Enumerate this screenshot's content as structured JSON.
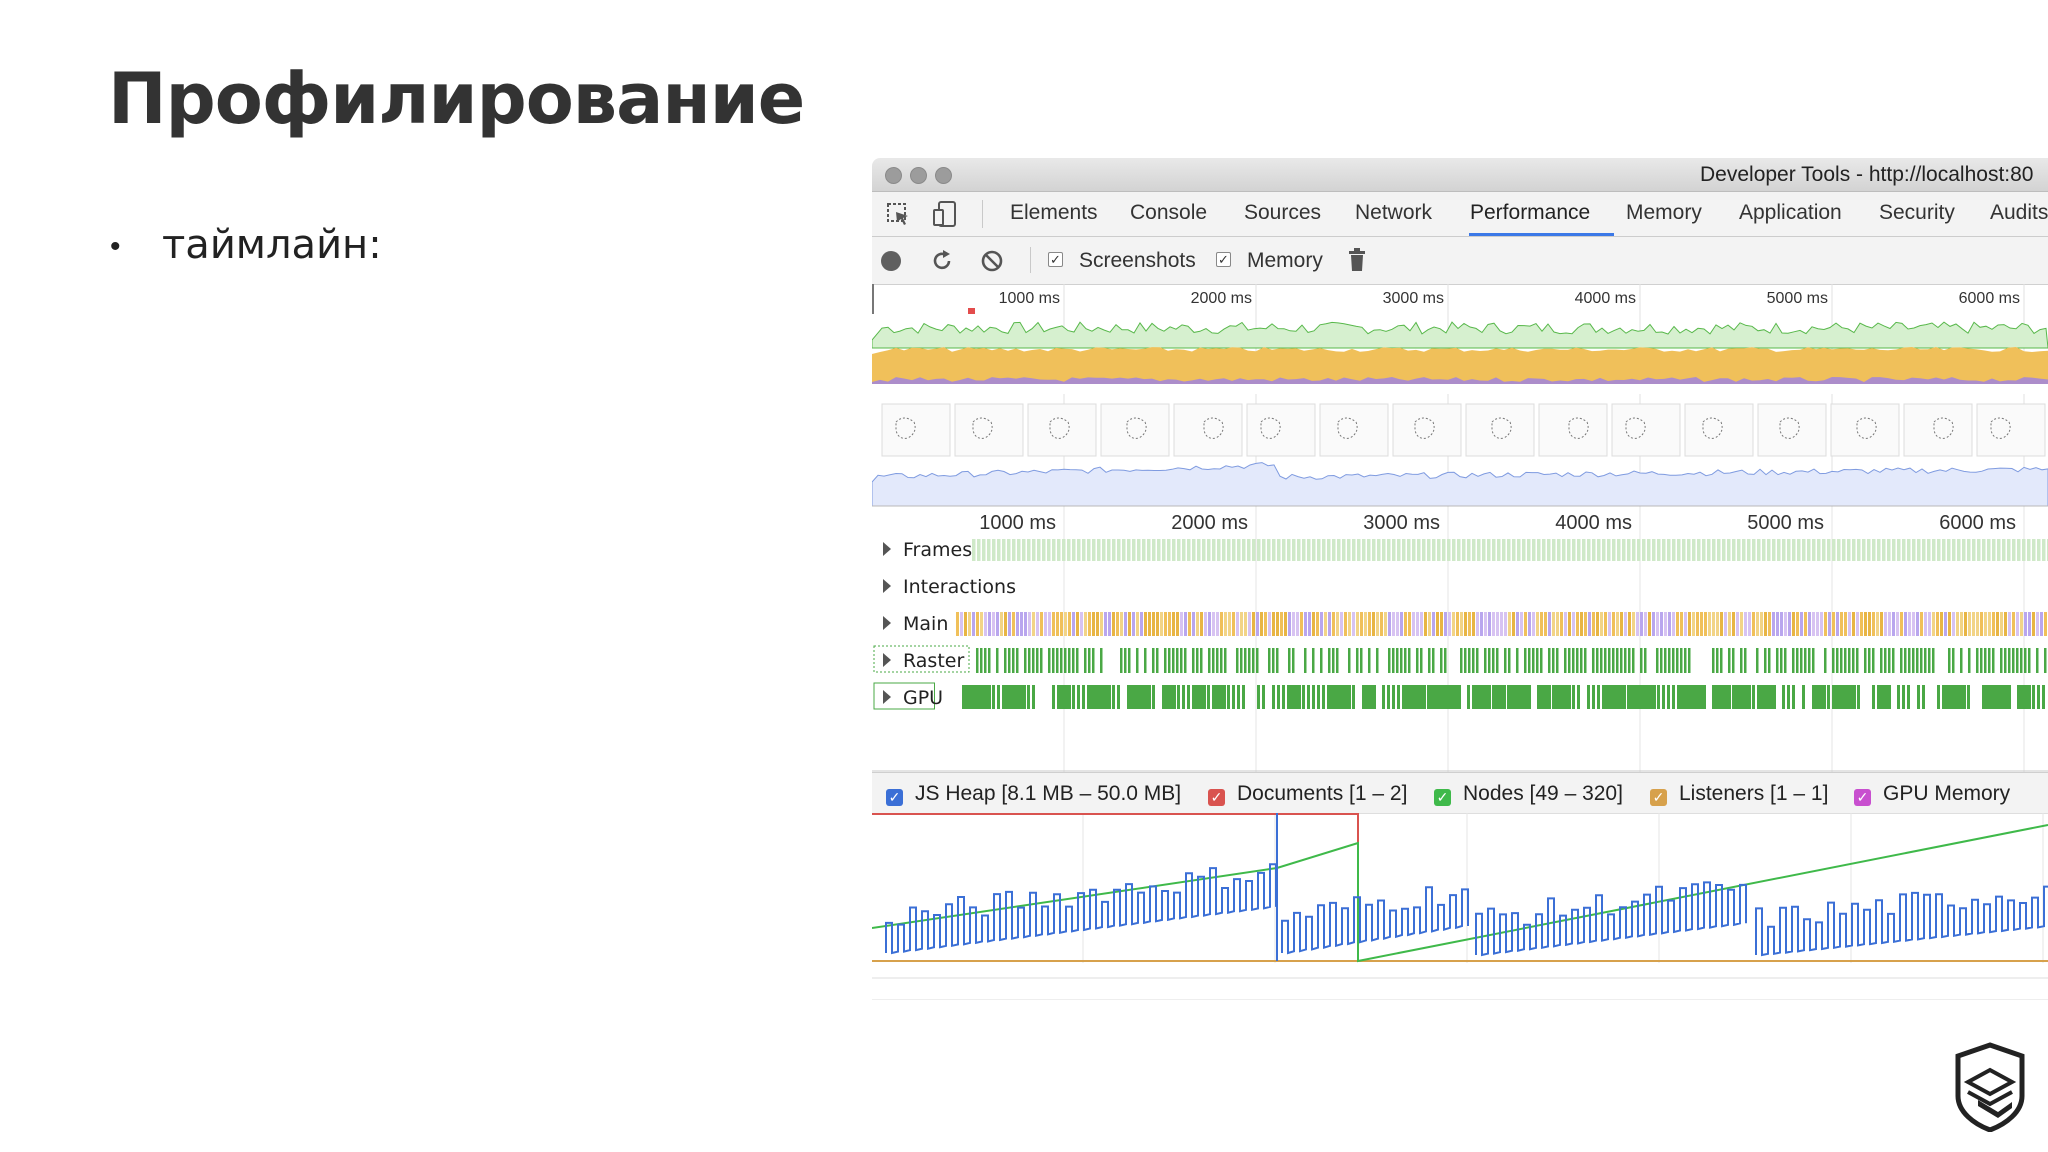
{
  "slide": {
    "title": "Профилирование",
    "bullet": "таймлайн:"
  },
  "window": {
    "title": "Developer Tools - http://localhost:80"
  },
  "tabs": [
    {
      "label": "Elements"
    },
    {
      "label": "Console"
    },
    {
      "label": "Sources"
    },
    {
      "label": "Network"
    },
    {
      "label": "Performance",
      "active": true
    },
    {
      "label": "Memory"
    },
    {
      "label": "Application"
    },
    {
      "label": "Security"
    },
    {
      "label": "Audits"
    }
  ],
  "toolbar": {
    "icons": [
      "inspect-icon",
      "device-icon",
      "record-icon",
      "reload-icon",
      "clear-icon",
      "trash-icon"
    ],
    "screenshots_label": "Screenshots",
    "screenshots_checked": true,
    "memory_label": "Memory",
    "memory_checked": true
  },
  "overview_ruler": [
    "1000 ms",
    "2000 ms",
    "3000 ms",
    "4000 ms",
    "5000 ms",
    "6000 ms"
  ],
  "timeline_ruler": [
    "1000 ms",
    "2000 ms",
    "3000 ms",
    "4000 ms",
    "5000 ms",
    "6000 ms"
  ],
  "tracks": [
    {
      "label": "Frames"
    },
    {
      "label": "Interactions"
    },
    {
      "label": "Main"
    },
    {
      "label": "Raster"
    },
    {
      "label": "GPU"
    }
  ],
  "memory_legend": [
    {
      "label": "JS Heap [8.1 MB – 50.0 MB]",
      "color": "#3b6fd6",
      "checked": true
    },
    {
      "label": "Documents [1 – 2]",
      "color": "#d9534f",
      "checked": true
    },
    {
      "label": "Nodes [49 – 320]",
      "color": "#3fb94a",
      "checked": true
    },
    {
      "label": "Listeners [1 – 1]",
      "color": "#d7a14c",
      "checked": true
    },
    {
      "label": "GPU Memory",
      "color": "#c84fcf",
      "checked": true
    }
  ],
  "colors": {
    "accent": "#3b78e7",
    "scripting": "#f0c05a",
    "rendering": "#9b7fe6",
    "frames": "#a8d8a0",
    "gpu": "#4aa845",
    "heap": "#3b6fd6",
    "nodes": "#3fb94a",
    "documents": "#d9534f"
  }
}
